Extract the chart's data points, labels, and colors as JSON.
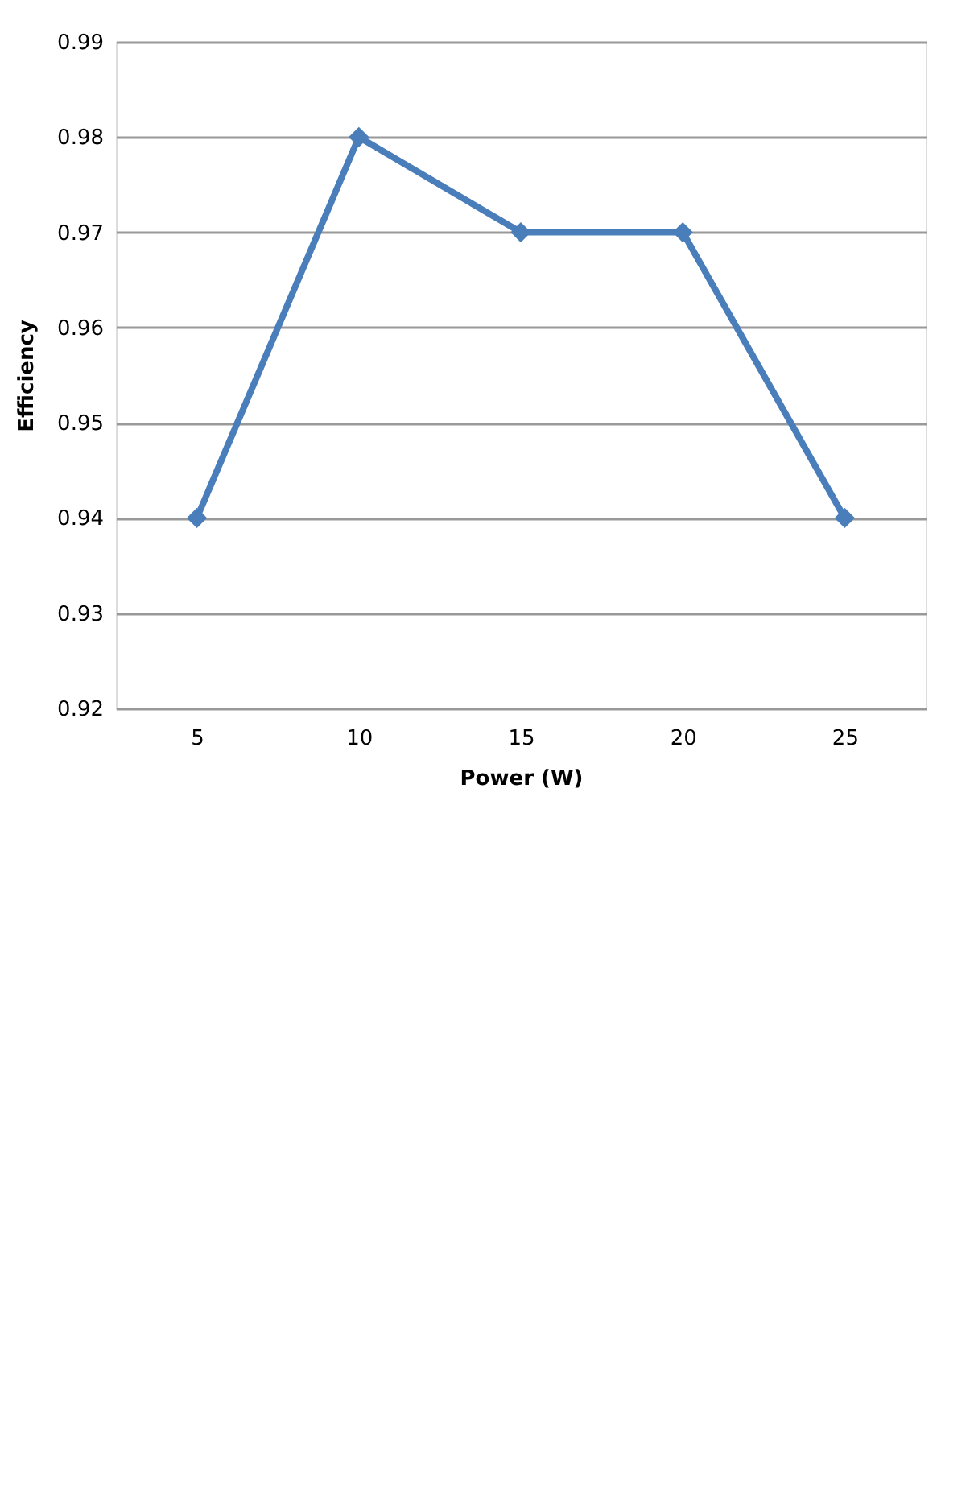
{
  "chart_data": {
    "type": "line",
    "xlabel": "Power (W)",
    "ylabel": "Efficiency",
    "categories": [
      "5",
      "10",
      "15",
      "20",
      "25"
    ],
    "series": [
      {
        "color": "#4a7ebb",
        "values": [
          0.94,
          0.98,
          0.97,
          0.97,
          0.94
        ]
      }
    ],
    "ylim": [
      0.92,
      0.99
    ],
    "yticks": [
      0.92,
      0.93,
      0.94,
      0.95,
      0.96,
      0.97,
      0.98,
      0.99
    ],
    "grid": "y",
    "marker": "diamond",
    "line_style": "solid",
    "legend": false
  }
}
